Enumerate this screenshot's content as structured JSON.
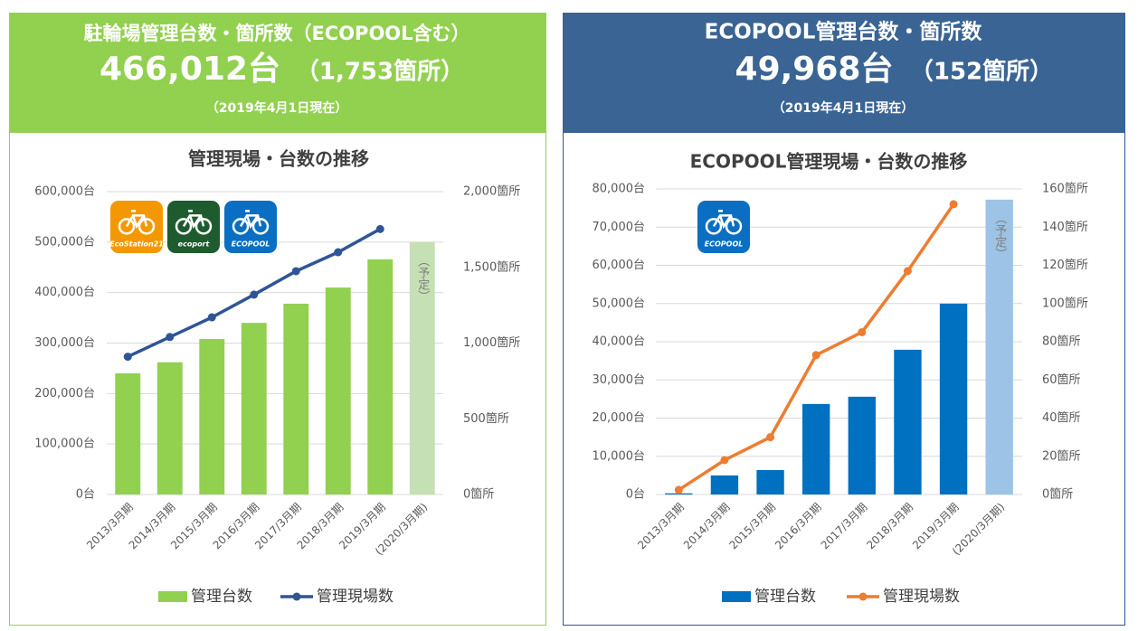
{
  "panels": [
    {
      "title": "駐輪場管理台数・箇所数（ECOPOOL含む）",
      "total": "466,012台",
      "sites": "（1,753箇所）",
      "date": "（2019年4月1日現在）",
      "logos": [
        "EcoStation21",
        "ecoport",
        "ECOPOOL"
      ]
    },
    {
      "title": "ECOPOOL管理台数・箇所数",
      "total": "49,968台",
      "sites": "（152箇所）",
      "date": "（2019年4月1日現在）",
      "logos": [
        "ECOPOOL"
      ]
    }
  ],
  "chart_data": [
    {
      "type": "bar_line",
      "title": "管理現場・台数の推移",
      "planned_label": "（予定）",
      "categories": [
        "2013/3月期",
        "2014/3月期",
        "2015/3月期",
        "2016/3月期",
        "2017/3月期",
        "2018/3月期",
        "2019/3月期",
        "(2020/3月期)"
      ],
      "series": [
        {
          "name": "管理台数",
          "kind": "bar",
          "color": "#92d050",
          "colors": [
            "#92d050",
            "#92d050",
            "#92d050",
            "#92d050",
            "#92d050",
            "#92d050",
            "#92d050",
            "#c5e0b4"
          ],
          "values": [
            240000,
            262000,
            308000,
            340000,
            378000,
            410000,
            466012,
            500000
          ]
        },
        {
          "name": "管理現場数",
          "kind": "line",
          "axis": "y2",
          "color": "#2f5597",
          "values": [
            910,
            1040,
            1170,
            1320,
            1475,
            1600,
            1753,
            null
          ]
        }
      ],
      "ylim": [
        0,
        600000
      ],
      "yticks": [
        {
          "value": 0,
          "label": "0台"
        },
        {
          "value": 100000,
          "label": "100,000台"
        },
        {
          "value": 200000,
          "label": "200,000台"
        },
        {
          "value": 300000,
          "label": "300,000台"
        },
        {
          "value": 400000,
          "label": "400,000台"
        },
        {
          "value": 500000,
          "label": "500,000台"
        },
        {
          "value": 600000,
          "label": "600,000台"
        }
      ],
      "y2lim": [
        0,
        2000
      ],
      "y2ticks": [
        {
          "value": 0,
          "label": "0箇所"
        },
        {
          "value": 500,
          "label": "500箇所"
        },
        {
          "value": 1000,
          "label": "1,000箇所"
        },
        {
          "value": 1500,
          "label": "1,500箇所"
        },
        {
          "value": 2000,
          "label": "2,000箇所"
        }
      ],
      "grid": true
    },
    {
      "type": "bar_line",
      "title": "ECOPOOL管理現場・台数の推移",
      "planned_label": "（予定）",
      "categories": [
        "2013/3月期",
        "2014/3月期",
        "2015/3月期",
        "2016/3月期",
        "2017/3月期",
        "2018/3月期",
        "2019/3月期",
        "(2020/3月期)"
      ],
      "series": [
        {
          "name": "管理台数",
          "kind": "bar",
          "color": "#0070c0",
          "colors": [
            "#0070c0",
            "#0070c0",
            "#0070c0",
            "#0070c0",
            "#0070c0",
            "#0070c0",
            "#0070c0",
            "#9dc3e6"
          ],
          "values": [
            300,
            5000,
            6400,
            23700,
            25600,
            37900,
            49968,
            77200
          ]
        },
        {
          "name": "管理現場数",
          "kind": "line",
          "axis": "y2",
          "color": "#ed7d31",
          "values": [
            2.4,
            18,
            30,
            73,
            85,
            117,
            152,
            null
          ]
        }
      ],
      "ylim": [
        0,
        80000
      ],
      "yticks": [
        {
          "value": 0,
          "label": "0台"
        },
        {
          "value": 10000,
          "label": "10,000台"
        },
        {
          "value": 20000,
          "label": "20,000台"
        },
        {
          "value": 30000,
          "label": "30,000台"
        },
        {
          "value": 40000,
          "label": "40,000台"
        },
        {
          "value": 50000,
          "label": "50,000台"
        },
        {
          "value": 60000,
          "label": "60,000台"
        },
        {
          "value": 70000,
          "label": "70,000台"
        },
        {
          "value": 80000,
          "label": "80,000台"
        }
      ],
      "y2lim": [
        0,
        160
      ],
      "y2ticks": [
        {
          "value": 0,
          "label": "0箇所"
        },
        {
          "value": 20,
          "label": "20箇所"
        },
        {
          "value": 40,
          "label": "40箇所"
        },
        {
          "value": 60,
          "label": "60箇所"
        },
        {
          "value": 80,
          "label": "80箇所"
        },
        {
          "value": 100,
          "label": "100箇所"
        },
        {
          "value": 120,
          "label": "120箇所"
        },
        {
          "value": 140,
          "label": "140箇所"
        },
        {
          "value": 160,
          "label": "160箇所"
        }
      ],
      "grid": true
    }
  ]
}
